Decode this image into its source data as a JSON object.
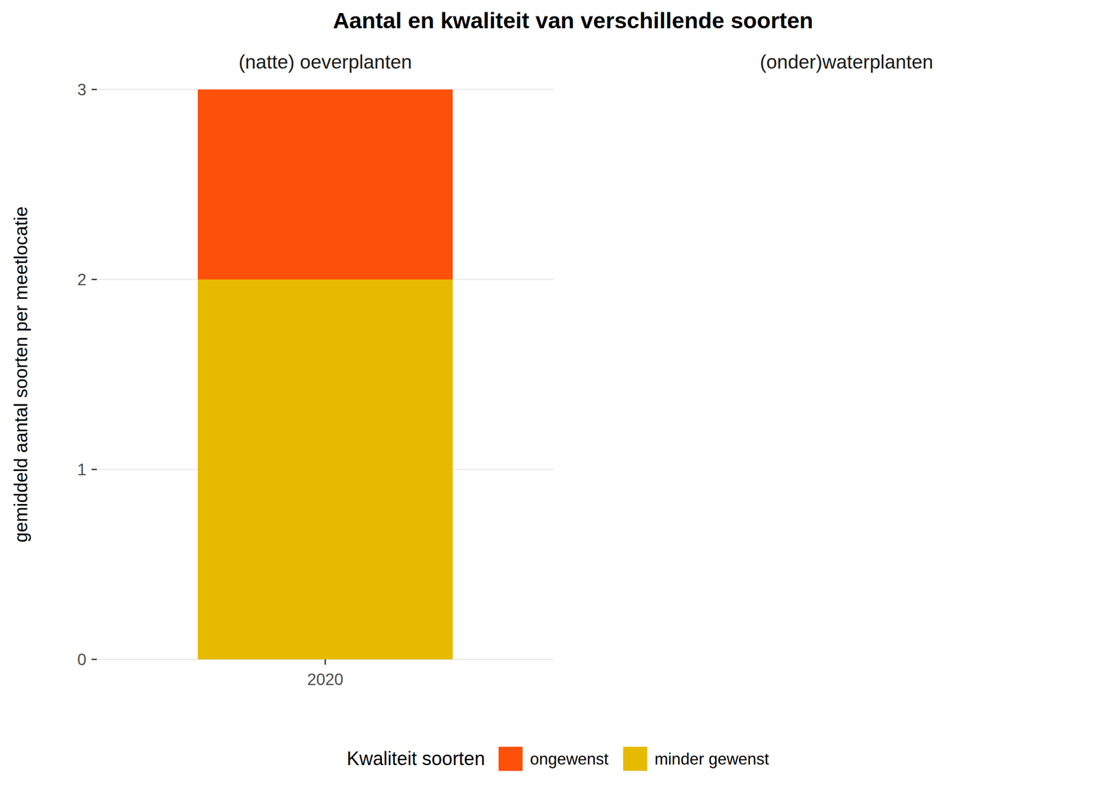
{
  "chart_data": [
    {
      "type": "bar",
      "title": "Aantal en kwaliteit van verschillende soorten",
      "subtitle": "(natte) oeverplanten",
      "y_label": "gemiddeld aantal soorten per meetlocatie",
      "categories": [
        "2020"
      ],
      "series": [
        {
          "name": "minder gewenst",
          "color": "#e6ba00",
          "values": [
            2
          ]
        },
        {
          "name": "ongewenst",
          "color": "#fd5008",
          "values": [
            1
          ]
        }
      ],
      "stacked": true,
      "ylim": [
        0,
        3
      ],
      "yticks": [
        0,
        1,
        2,
        3
      ],
      "grid": true,
      "legend": "bottom",
      "legend_title": "Kwaliteit soorten"
    },
    {
      "type": "bar",
      "subtitle": "(onder)waterplanten",
      "categories": [],
      "series": []
    }
  ]
}
